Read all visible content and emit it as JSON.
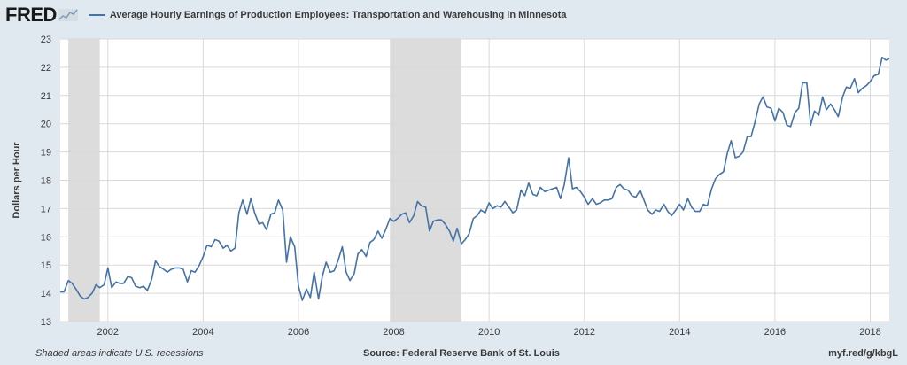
{
  "header": {
    "logo_text": "FRED",
    "logo_icon": "fred-sparkline-icon",
    "title": "Average Hourly Earnings of Production Employees: Transportation and Warehousing in Minnesota"
  },
  "footer": {
    "left": "Shaded areas indicate U.S. recessions",
    "center": "Source: Federal Reserve Bank of St. Louis",
    "right": "myf.red/g/kbgL"
  },
  "colors": {
    "line": "#4572a7",
    "recession": "#dcdcdc",
    "plot_bg": "#ffffff",
    "page_bg": "#e1e9f0",
    "grid": "#d9d9d9"
  },
  "chart_data": {
    "type": "line",
    "title": "Average Hourly Earnings of Production Employees: Transportation and Warehousing in Minnesota",
    "xlabel": "",
    "ylabel": "Dollars per Hour",
    "xlim": [
      2001.0,
      2018.4
    ],
    "ylim": [
      13,
      23
    ],
    "yticks": [
      13,
      14,
      15,
      16,
      17,
      18,
      19,
      20,
      21,
      22,
      23
    ],
    "xticks": [
      2002,
      2004,
      2006,
      2008,
      2010,
      2012,
      2014,
      2016,
      2018
    ],
    "grid": true,
    "legend": "top-left",
    "recessions": [
      [
        2001.17,
        2001.83
      ],
      [
        2007.92,
        2009.42
      ]
    ],
    "series": [
      {
        "name": "Average Hourly Earnings of Production Employees: Transportation and Warehousing in Minnesota",
        "points": [
          [
            2001.0,
            14.05
          ],
          [
            2001.08,
            14.05
          ],
          [
            2001.17,
            14.45
          ],
          [
            2001.25,
            14.35
          ],
          [
            2001.33,
            14.15
          ],
          [
            2001.42,
            13.9
          ],
          [
            2001.5,
            13.8
          ],
          [
            2001.58,
            13.85
          ],
          [
            2001.67,
            14.0
          ],
          [
            2001.75,
            14.3
          ],
          [
            2001.83,
            14.2
          ],
          [
            2001.92,
            14.3
          ],
          [
            2002.0,
            14.9
          ],
          [
            2002.08,
            14.2
          ],
          [
            2002.17,
            14.4
          ],
          [
            2002.25,
            14.35
          ],
          [
            2002.33,
            14.35
          ],
          [
            2002.42,
            14.6
          ],
          [
            2002.5,
            14.55
          ],
          [
            2002.58,
            14.25
          ],
          [
            2002.67,
            14.2
          ],
          [
            2002.75,
            14.25
          ],
          [
            2002.83,
            14.1
          ],
          [
            2002.92,
            14.5
          ],
          [
            2003.0,
            15.15
          ],
          [
            2003.08,
            14.95
          ],
          [
            2003.17,
            14.85
          ],
          [
            2003.25,
            14.75
          ],
          [
            2003.33,
            14.85
          ],
          [
            2003.42,
            14.9
          ],
          [
            2003.5,
            14.9
          ],
          [
            2003.58,
            14.85
          ],
          [
            2003.67,
            14.4
          ],
          [
            2003.75,
            14.8
          ],
          [
            2003.83,
            14.75
          ],
          [
            2003.92,
            15.0
          ],
          [
            2004.0,
            15.3
          ],
          [
            2004.08,
            15.7
          ],
          [
            2004.17,
            15.65
          ],
          [
            2004.25,
            15.9
          ],
          [
            2004.33,
            15.85
          ],
          [
            2004.42,
            15.6
          ],
          [
            2004.5,
            15.7
          ],
          [
            2004.58,
            15.5
          ],
          [
            2004.67,
            15.6
          ],
          [
            2004.75,
            16.85
          ],
          [
            2004.83,
            17.3
          ],
          [
            2004.92,
            16.8
          ],
          [
            2005.0,
            17.35
          ],
          [
            2005.08,
            16.85
          ],
          [
            2005.17,
            16.45
          ],
          [
            2005.25,
            16.5
          ],
          [
            2005.33,
            16.25
          ],
          [
            2005.42,
            16.8
          ],
          [
            2005.5,
            16.85
          ],
          [
            2005.58,
            17.3
          ],
          [
            2005.67,
            16.95
          ],
          [
            2005.75,
            15.1
          ],
          [
            2005.83,
            16.0
          ],
          [
            2005.92,
            15.65
          ],
          [
            2006.0,
            14.25
          ],
          [
            2006.08,
            13.75
          ],
          [
            2006.17,
            14.15
          ],
          [
            2006.25,
            13.85
          ],
          [
            2006.33,
            14.75
          ],
          [
            2006.42,
            13.8
          ],
          [
            2006.5,
            14.6
          ],
          [
            2006.58,
            15.1
          ],
          [
            2006.67,
            14.75
          ],
          [
            2006.75,
            14.8
          ],
          [
            2006.83,
            15.15
          ],
          [
            2006.92,
            15.65
          ],
          [
            2007.0,
            14.75
          ],
          [
            2007.08,
            14.45
          ],
          [
            2007.17,
            14.7
          ],
          [
            2007.25,
            15.4
          ],
          [
            2007.33,
            15.55
          ],
          [
            2007.42,
            15.3
          ],
          [
            2007.5,
            15.8
          ],
          [
            2007.58,
            15.9
          ],
          [
            2007.67,
            16.2
          ],
          [
            2007.75,
            15.95
          ],
          [
            2007.83,
            16.25
          ],
          [
            2007.92,
            16.65
          ],
          [
            2008.0,
            16.55
          ],
          [
            2008.08,
            16.65
          ],
          [
            2008.17,
            16.8
          ],
          [
            2008.25,
            16.85
          ],
          [
            2008.33,
            16.5
          ],
          [
            2008.42,
            16.75
          ],
          [
            2008.5,
            17.25
          ],
          [
            2008.58,
            17.1
          ],
          [
            2008.67,
            17.05
          ],
          [
            2008.75,
            16.2
          ],
          [
            2008.83,
            16.55
          ],
          [
            2008.92,
            16.6
          ],
          [
            2009.0,
            16.6
          ],
          [
            2009.08,
            16.45
          ],
          [
            2009.17,
            16.2
          ],
          [
            2009.25,
            15.85
          ],
          [
            2009.33,
            16.3
          ],
          [
            2009.42,
            15.75
          ],
          [
            2009.5,
            15.9
          ],
          [
            2009.58,
            16.1
          ],
          [
            2009.67,
            16.65
          ],
          [
            2009.75,
            16.75
          ],
          [
            2009.83,
            16.95
          ],
          [
            2009.92,
            16.85
          ],
          [
            2010.0,
            17.2
          ],
          [
            2010.08,
            17.0
          ],
          [
            2010.17,
            17.1
          ],
          [
            2010.25,
            17.05
          ],
          [
            2010.33,
            17.25
          ],
          [
            2010.42,
            17.05
          ],
          [
            2010.5,
            16.85
          ],
          [
            2010.58,
            16.95
          ],
          [
            2010.67,
            17.65
          ],
          [
            2010.75,
            17.45
          ],
          [
            2010.83,
            17.9
          ],
          [
            2010.92,
            17.5
          ],
          [
            2011.0,
            17.45
          ],
          [
            2011.08,
            17.75
          ],
          [
            2011.17,
            17.6
          ],
          [
            2011.25,
            17.65
          ],
          [
            2011.33,
            17.7
          ],
          [
            2011.42,
            17.75
          ],
          [
            2011.5,
            17.35
          ],
          [
            2011.58,
            17.85
          ],
          [
            2011.67,
            18.8
          ],
          [
            2011.75,
            17.7
          ],
          [
            2011.83,
            17.75
          ],
          [
            2011.92,
            17.6
          ],
          [
            2012.0,
            17.4
          ],
          [
            2012.08,
            17.15
          ],
          [
            2012.17,
            17.35
          ],
          [
            2012.25,
            17.15
          ],
          [
            2012.33,
            17.2
          ],
          [
            2012.42,
            17.3
          ],
          [
            2012.5,
            17.3
          ],
          [
            2012.58,
            17.35
          ],
          [
            2012.67,
            17.75
          ],
          [
            2012.75,
            17.85
          ],
          [
            2012.83,
            17.7
          ],
          [
            2012.92,
            17.65
          ],
          [
            2013.0,
            17.45
          ],
          [
            2013.08,
            17.4
          ],
          [
            2013.17,
            17.65
          ],
          [
            2013.25,
            17.3
          ],
          [
            2013.33,
            16.95
          ],
          [
            2013.42,
            16.8
          ],
          [
            2013.5,
            16.95
          ],
          [
            2013.58,
            16.9
          ],
          [
            2013.67,
            17.15
          ],
          [
            2013.75,
            16.9
          ],
          [
            2013.83,
            16.75
          ],
          [
            2013.92,
            16.95
          ],
          [
            2014.0,
            17.15
          ],
          [
            2014.08,
            16.95
          ],
          [
            2014.17,
            17.35
          ],
          [
            2014.25,
            17.05
          ],
          [
            2014.33,
            16.9
          ],
          [
            2014.42,
            16.9
          ],
          [
            2014.5,
            17.15
          ],
          [
            2014.58,
            17.1
          ],
          [
            2014.67,
            17.7
          ],
          [
            2014.75,
            18.05
          ],
          [
            2014.83,
            18.2
          ],
          [
            2014.92,
            18.3
          ],
          [
            2015.0,
            18.95
          ],
          [
            2015.08,
            19.4
          ],
          [
            2015.17,
            18.8
          ],
          [
            2015.25,
            18.85
          ],
          [
            2015.33,
            19.0
          ],
          [
            2015.42,
            19.55
          ],
          [
            2015.5,
            19.55
          ],
          [
            2015.58,
            20.05
          ],
          [
            2015.67,
            20.7
          ],
          [
            2015.75,
            20.95
          ],
          [
            2015.83,
            20.6
          ],
          [
            2015.92,
            20.55
          ],
          [
            2016.0,
            20.1
          ],
          [
            2016.08,
            20.55
          ],
          [
            2016.17,
            20.4
          ],
          [
            2016.25,
            19.95
          ],
          [
            2016.33,
            19.9
          ],
          [
            2016.42,
            20.4
          ],
          [
            2016.5,
            20.55
          ],
          [
            2016.58,
            21.45
          ],
          [
            2016.67,
            21.45
          ],
          [
            2016.75,
            19.95
          ],
          [
            2016.83,
            20.45
          ],
          [
            2016.92,
            20.3
          ],
          [
            2017.0,
            20.95
          ],
          [
            2017.08,
            20.5
          ],
          [
            2017.17,
            20.7
          ],
          [
            2017.25,
            20.5
          ],
          [
            2017.33,
            20.25
          ],
          [
            2017.42,
            20.95
          ],
          [
            2017.5,
            21.3
          ],
          [
            2017.58,
            21.25
          ],
          [
            2017.67,
            21.6
          ],
          [
            2017.75,
            21.1
          ],
          [
            2017.83,
            21.25
          ],
          [
            2017.92,
            21.35
          ],
          [
            2018.0,
            21.5
          ],
          [
            2018.08,
            21.7
          ],
          [
            2018.17,
            21.75
          ],
          [
            2018.25,
            22.35
          ],
          [
            2018.33,
            22.25
          ],
          [
            2018.4,
            22.3
          ]
        ]
      }
    ]
  }
}
